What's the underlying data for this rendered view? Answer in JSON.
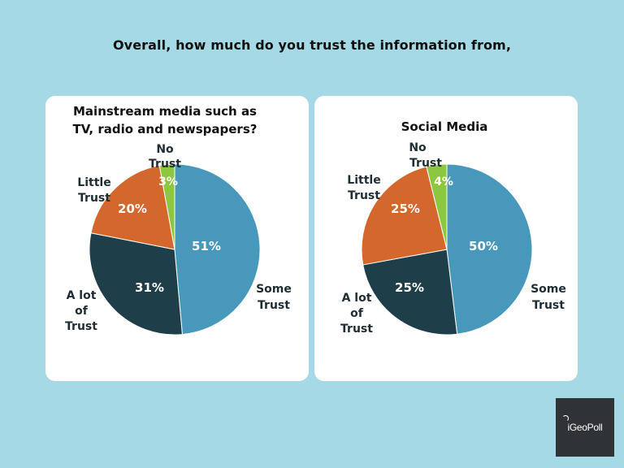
{
  "title": "Overall, how much do you trust the information from,",
  "logo": {
    "text": "iGeoPoll"
  },
  "colors": {
    "background": "#a6d9e6",
    "some_trust": "#4798bb",
    "a_lot_of_trust": "#1e3e4a",
    "little_trust": "#d4672b",
    "no_trust": "#8dc63f"
  },
  "chart_data": [
    {
      "type": "pie",
      "title": "Mainstream media such as TV, radio and newspapers?",
      "slices": [
        {
          "label": "Some Trust",
          "value": 51
        },
        {
          "label": "A lot of Trust",
          "value": 31
        },
        {
          "label": "Little Trust",
          "value": 20
        },
        {
          "label": "No Trust",
          "value": 3
        }
      ]
    },
    {
      "type": "pie",
      "title": "Social Media",
      "slices": [
        {
          "label": "Some Trust",
          "value": 50
        },
        {
          "label": "A lot of Trust",
          "value": 25
        },
        {
          "label": "Little Trust",
          "value": 25
        },
        {
          "label": "No Trust",
          "value": 4
        }
      ]
    }
  ]
}
